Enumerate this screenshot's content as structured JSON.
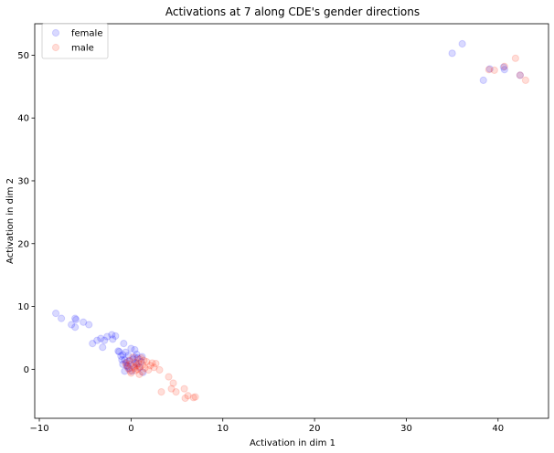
{
  "chart_data": {
    "type": "scatter",
    "title": "Activations at 7 along CDE's gender directions",
    "xlabel": "Activation in dim 1",
    "ylabel": "Activation in dim 2",
    "xlim": [
      -10.5,
      45.5
    ],
    "ylim": [
      -7.8,
      55.0
    ],
    "x_ticks": [
      -10,
      0,
      10,
      20,
      30,
      40
    ],
    "y_ticks": [
      0,
      10,
      20,
      30,
      40,
      50
    ],
    "grid": false,
    "legend_position": "upper-left",
    "point_alpha": 0.15,
    "series": [
      {
        "name": "female",
        "color": "#0000ff",
        "points": [
          [
            -8.2,
            8.9
          ],
          [
            -7.6,
            8.1
          ],
          [
            -6.1,
            8.1
          ],
          [
            -6.0,
            7.9
          ],
          [
            -6.5,
            7.1
          ],
          [
            -6.1,
            6.7
          ],
          [
            -5.2,
            7.5
          ],
          [
            -4.6,
            7.1
          ],
          [
            -4.2,
            4.1
          ],
          [
            -3.7,
            4.6
          ],
          [
            -3.3,
            4.9
          ],
          [
            -2.9,
            4.6
          ],
          [
            -2.6,
            5.2
          ],
          [
            -2.1,
            5.5
          ],
          [
            -1.7,
            5.3
          ],
          [
            -1.3,
            2.8
          ],
          [
            -0.9,
            2.3
          ],
          [
            -0.7,
            1.5
          ],
          [
            -0.5,
            1.1
          ],
          [
            -0.4,
            0.6
          ],
          [
            -0.2,
            0.1
          ],
          [
            0.1,
            -0.3
          ],
          [
            0.3,
            0.8
          ],
          [
            0.4,
            1.9
          ],
          [
            0.6,
            2.4
          ],
          [
            0.9,
            0.3
          ],
          [
            1.1,
            1.2
          ],
          [
            1.3,
            -0.5
          ],
          [
            0.0,
            3.3
          ],
          [
            -3.1,
            3.5
          ],
          [
            -2.0,
            4.8
          ],
          [
            -0.8,
            4.1
          ],
          [
            -1.4,
            2.9
          ],
          [
            -1.1,
            2.1
          ],
          [
            -1.0,
            1.5
          ],
          [
            -0.9,
            0.8
          ],
          [
            -0.6,
            2.7
          ],
          [
            -0.3,
            2.2
          ],
          [
            0.2,
            1.6
          ],
          [
            0.4,
            3.1
          ],
          [
            0.7,
            1.8
          ],
          [
            1.2,
            2.0
          ],
          [
            -0.4,
            0.4
          ],
          [
            -0.7,
            -0.3
          ],
          [
            -0.2,
            1.3
          ],
          [
            0.6,
            0.9
          ],
          [
            35.0,
            50.3
          ],
          [
            36.1,
            51.8
          ],
          [
            38.4,
            46.0
          ],
          [
            39.1,
            47.8
          ],
          [
            40.7,
            47.7
          ],
          [
            40.6,
            48.1
          ],
          [
            42.4,
            46.8
          ]
        ]
      },
      {
        "name": "male",
        "color": "#ff2200",
        "points": [
          [
            -0.5,
            0.6
          ],
          [
            -0.2,
            1.4
          ],
          [
            0.0,
            -0.6
          ],
          [
            0.3,
            0.4
          ],
          [
            0.5,
            1.1
          ],
          [
            0.7,
            0.0
          ],
          [
            0.9,
            -0.8
          ],
          [
            1.1,
            1.8
          ],
          [
            1.3,
            0.7
          ],
          [
            1.5,
            0.2
          ],
          [
            1.7,
            1.2
          ],
          [
            1.9,
            -0.1
          ],
          [
            2.1,
            0.6
          ],
          [
            2.3,
            1.0
          ],
          [
            2.5,
            0.3
          ],
          [
            2.7,
            0.9
          ],
          [
            3.1,
            -0.1
          ],
          [
            3.3,
            -3.6
          ],
          [
            4.1,
            -1.2
          ],
          [
            4.4,
            -3.1
          ],
          [
            4.6,
            -2.2
          ],
          [
            4.9,
            -3.6
          ],
          [
            5.8,
            -3.1
          ],
          [
            5.9,
            -4.6
          ],
          [
            6.2,
            -4.2
          ],
          [
            6.8,
            -4.5
          ],
          [
            7.0,
            -4.4
          ],
          [
            0.4,
            0.2
          ],
          [
            0.8,
            0.9
          ],
          [
            1.0,
            0.4
          ],
          [
            -0.1,
            -0.3
          ],
          [
            0.2,
            1.9
          ],
          [
            1.4,
            1.4
          ],
          [
            -0.3,
            0.1
          ],
          [
            0.5,
            -0.2
          ],
          [
            0.6,
            0.6
          ],
          [
            -0.6,
            1.0
          ],
          [
            0.9,
            1.6
          ],
          [
            1.2,
            -0.4
          ],
          [
            -0.1,
            0.8
          ],
          [
            39.0,
            47.7
          ],
          [
            39.6,
            47.6
          ],
          [
            40.7,
            48.2
          ],
          [
            41.9,
            49.5
          ],
          [
            42.4,
            46.8
          ],
          [
            43.0,
            46.0
          ]
        ]
      }
    ]
  }
}
